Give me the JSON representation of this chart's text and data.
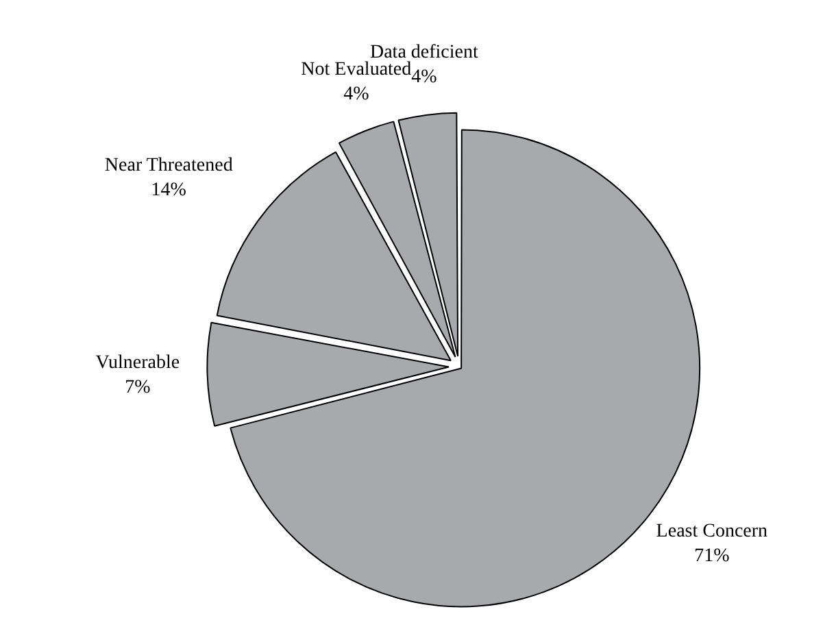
{
  "chart_data": {
    "type": "pie",
    "categories": [
      "Least Concern",
      "Vulnerable",
      "Near Threatened",
      "Not Evaluated",
      "Data deficient"
    ],
    "values": [
      71,
      7,
      14,
      4,
      4
    ],
    "value_labels": [
      "71%",
      "7%",
      "14%",
      "4%",
      "4%"
    ],
    "colors": [
      "#a7a9ac",
      "#a7a9ac",
      "#a7a9ac",
      "#a7a9ac",
      "#a7a9ac"
    ]
  }
}
